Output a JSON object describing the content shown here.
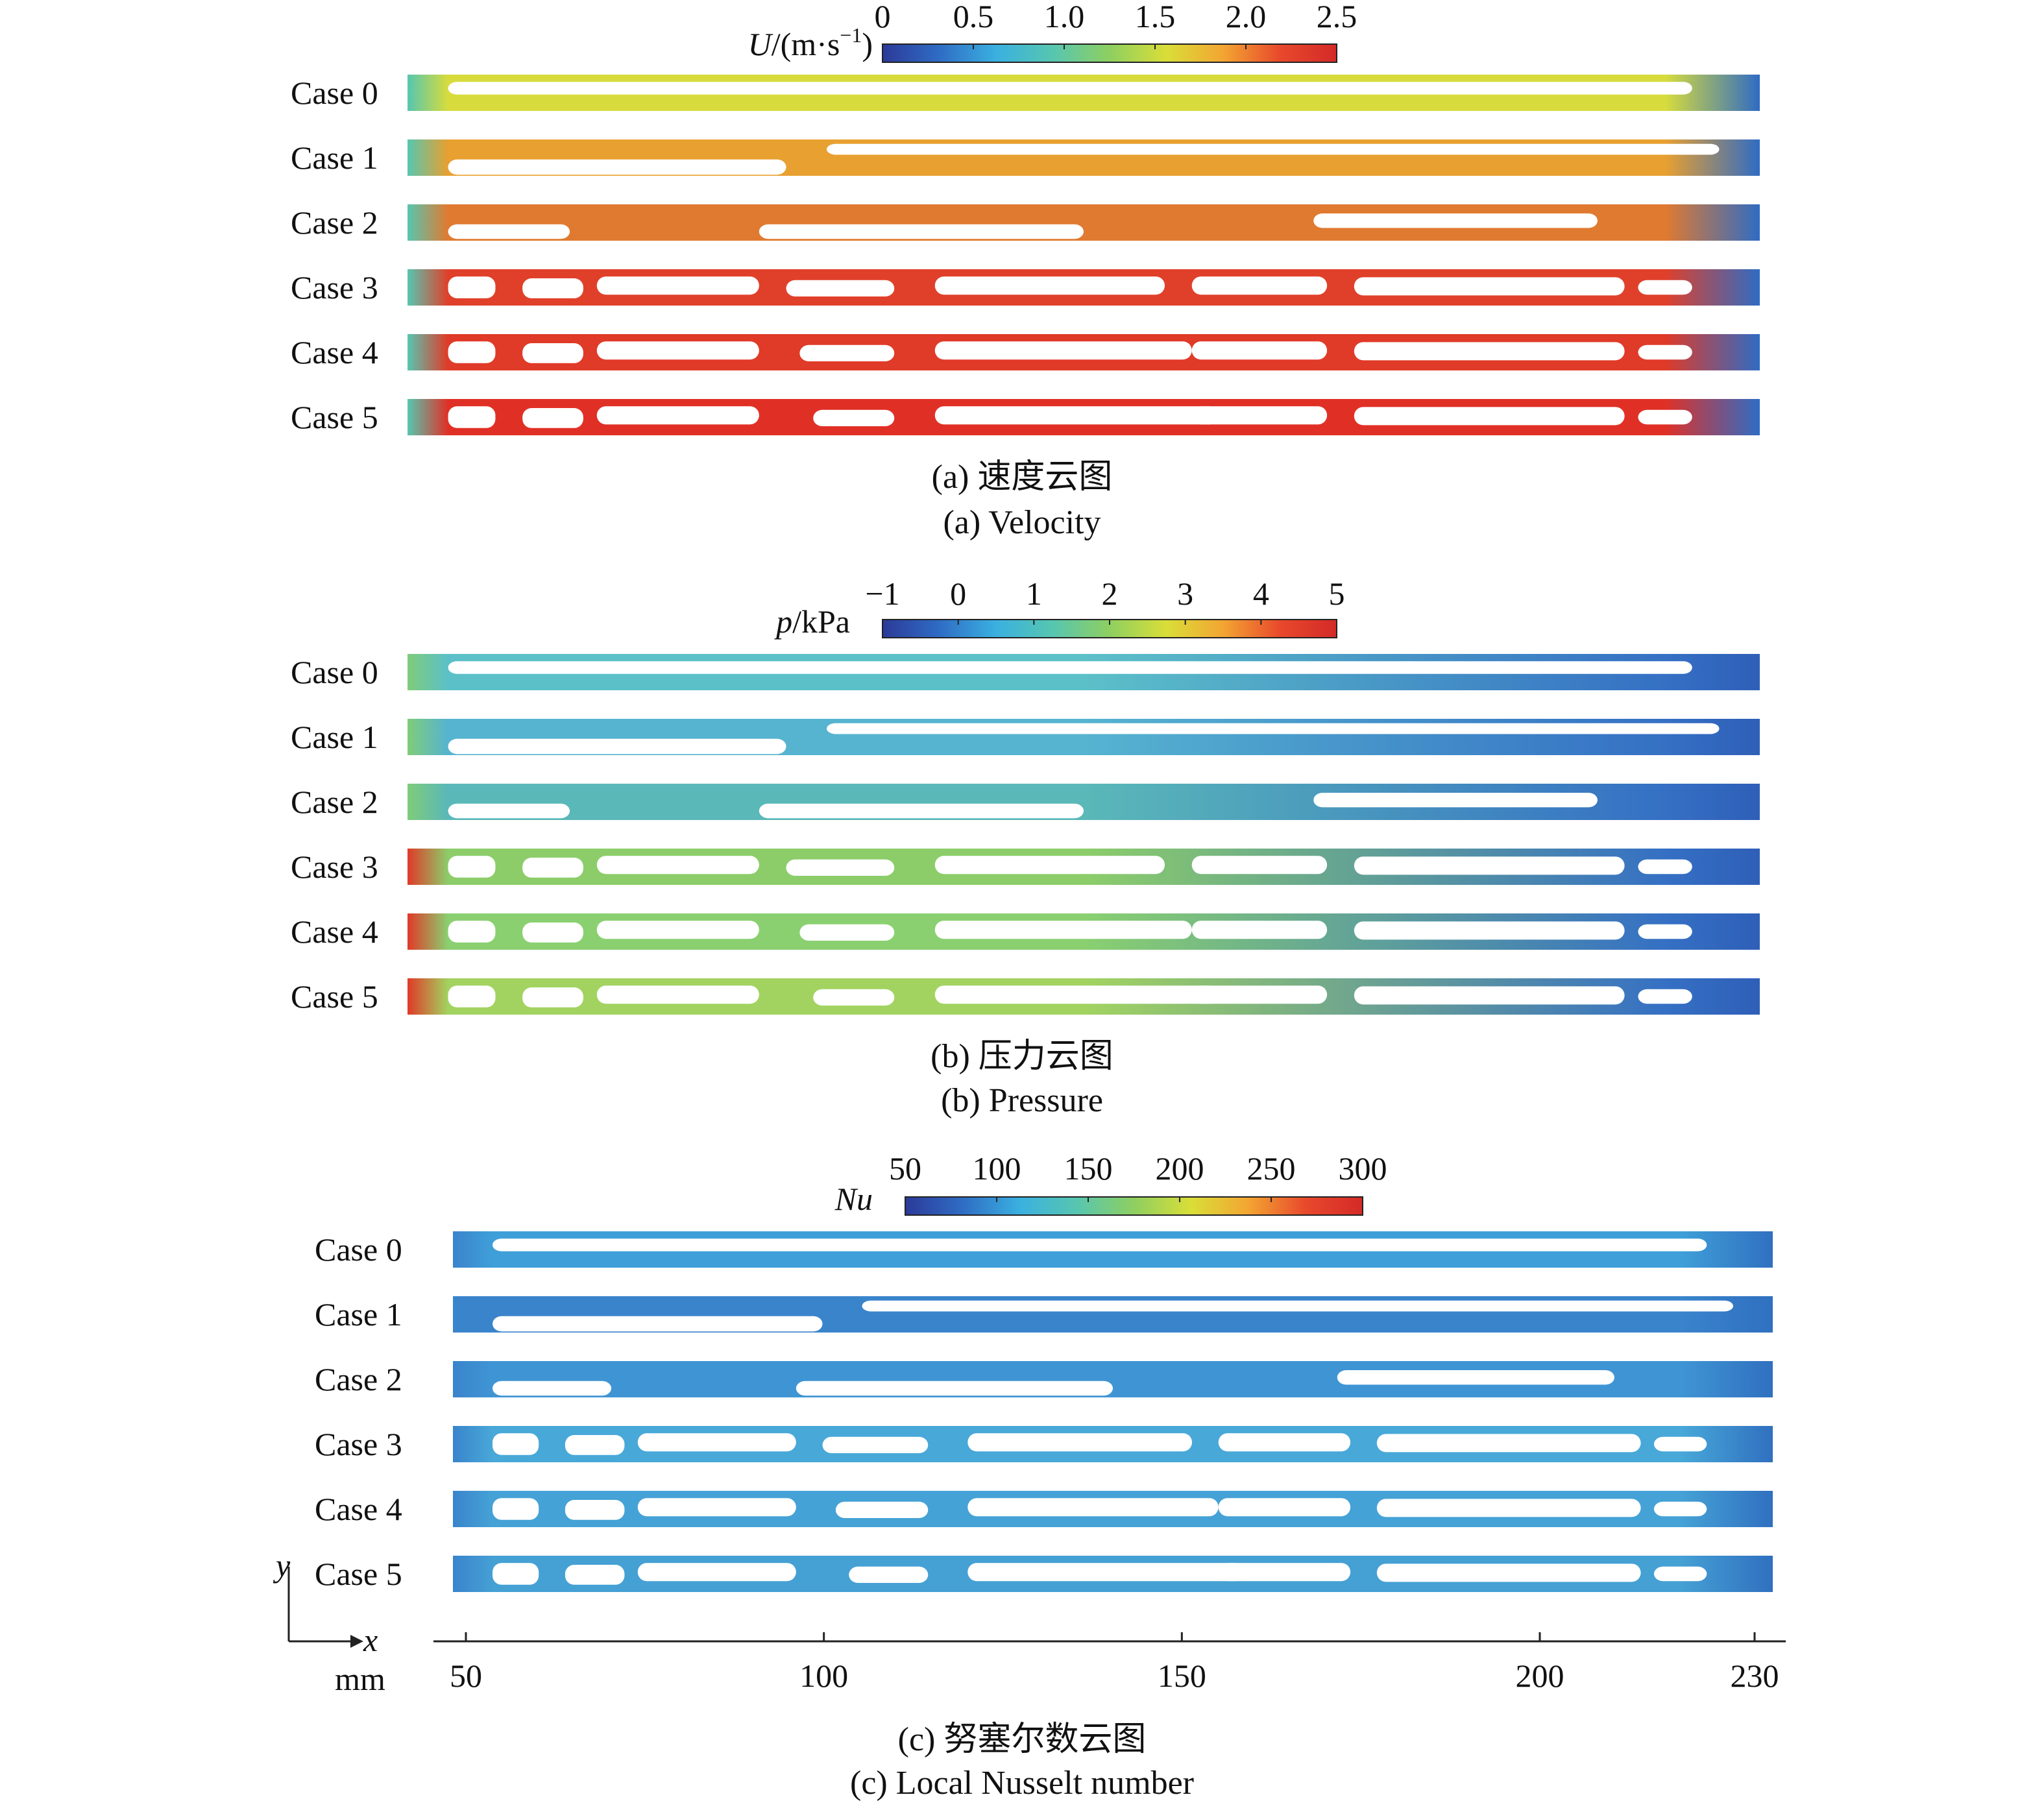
{
  "panels": [
    {
      "id": "velocity",
      "colorbar": {
        "label_main": "U",
        "label_unit": "/(m·s",
        "label_sup": "−1",
        "label_close": ")",
        "ticks": [
          "0",
          "0.5",
          "1.0",
          "1.5",
          "2.0",
          "2.5"
        ],
        "range": [
          0,
          2.5
        ]
      },
      "cases": [
        "Case 0",
        "Case 1",
        "Case 2",
        "Case 3",
        "Case 4",
        "Case 5"
      ],
      "caption_cn": "(a) 速度云图",
      "caption_en": "(a) Velocity",
      "field_colors": [
        "#d7dc3c",
        "#e8a030",
        "#e07a30",
        "#e0402a",
        "#e03a28",
        "#e03026"
      ]
    },
    {
      "id": "pressure",
      "colorbar": {
        "label_main": "p",
        "label_unit": "/kPa",
        "label_sup": "",
        "label_close": "",
        "ticks": [
          "−1",
          "0",
          "1",
          "2",
          "3",
          "4",
          "5"
        ],
        "range": [
          -1,
          5
        ]
      },
      "cases": [
        "Case 0",
        "Case 1",
        "Case 2",
        "Case 3",
        "Case 4",
        "Case 5"
      ],
      "caption_cn": "(b) 压力云图",
      "caption_en": "(b) Pressure",
      "field_colors": [
        "#5cc0c8",
        "#56b4d0",
        "#5ab8b8",
        "#8ccd6a",
        "#8ad070",
        "#a2d360"
      ]
    },
    {
      "id": "nusselt",
      "colorbar": {
        "label_main": "Nu",
        "label_unit": "",
        "label_sup": "",
        "label_close": "",
        "ticks": [
          "50",
          "100",
          "150",
          "200",
          "250",
          "300"
        ],
        "range": [
          50,
          300
        ]
      },
      "cases": [
        "Case 0",
        "Case 1",
        "Case 2",
        "Case 3",
        "Case 4",
        "Case 5"
      ],
      "caption_cn": "(c) 努塞尔数云图",
      "caption_en": "(c) Local Nusselt number",
      "field_colors": [
        "#3f9fd8",
        "#3a84cc",
        "#3f95d4",
        "#48a8d8",
        "#45a2d6",
        "#45a0d4"
      ]
    }
  ],
  "x_axis": {
    "ticks": [
      50,
      100,
      150,
      200,
      230
    ],
    "range": [
      48,
      230
    ],
    "unit": "mm",
    "axis_x_label": "x",
    "axis_y_label": "y"
  },
  "colormap": [
    "#2b3a98",
    "#2f6cc4",
    "#3ab0e0",
    "#57c6b0",
    "#8ecf60",
    "#d9de38",
    "#f3a532",
    "#e8492c",
    "#d42a28"
  ]
}
